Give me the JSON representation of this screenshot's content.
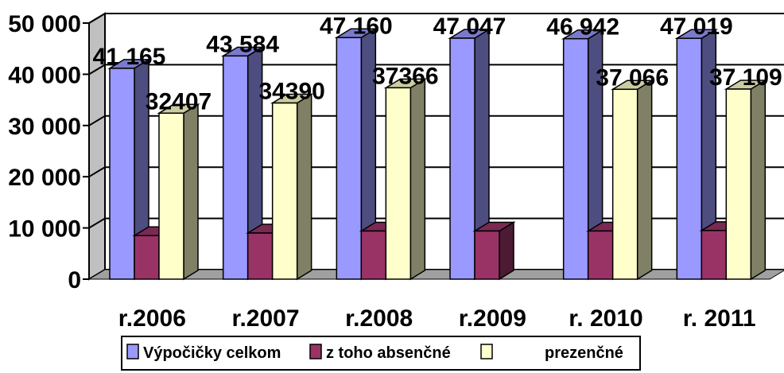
{
  "chart_data": {
    "type": "bar",
    "categories": [
      "r.2006",
      "r.2007",
      "r.2008",
      "r.2009",
      "r. 2010",
      "r. 2011"
    ],
    "series": [
      {
        "name": "Výpočičky celkom",
        "values": [
          41165,
          43584,
          47160,
          47047,
          46942,
          47019
        ],
        "labels": [
          "41 165",
          "43 584",
          "47 160",
          "47 047",
          "46 942",
          "47 019"
        ],
        "color": "#9999ff"
      },
      {
        "name": "z toho absenčné",
        "values": [
          8500,
          9000,
          9400,
          9400,
          9400,
          9500
        ],
        "labels": [
          "",
          "",
          "",
          "",
          "",
          ""
        ],
        "color": "#993366"
      },
      {
        "name": "prezenčné",
        "values": [
          32407,
          34390,
          37366,
          null,
          37066,
          37109
        ],
        "labels": [
          "32407",
          "34390",
          "37366",
          "",
          "37 066",
          "37 109"
        ],
        "color": "#ffffcc"
      }
    ],
    "y_ticks": [
      "0",
      "10 000",
      "20 000",
      "30 000",
      "40 000",
      "50 000"
    ],
    "ylim": [
      0,
      50000
    ],
    "grid": true,
    "legend_position": "bottom",
    "style": "3d-column"
  }
}
